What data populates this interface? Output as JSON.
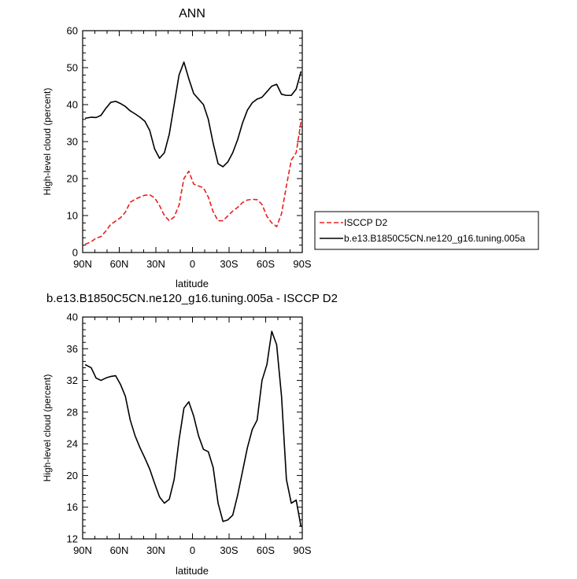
{
  "chart_data": [
    {
      "type": "line",
      "title": "ANN",
      "xlabel": "latitude",
      "ylabel": "High-level cloud (percent)",
      "xlim": [
        90,
        -90
      ],
      "ylim": [
        0,
        60
      ],
      "x_ticks": [
        90,
        60,
        30,
        0,
        -30,
        -60,
        -90
      ],
      "x_tick_labels": [
        "90N",
        "60N",
        "30N",
        "0",
        "30S",
        "60S",
        "90S"
      ],
      "y_ticks": [
        0,
        10,
        20,
        30,
        40,
        50,
        60
      ],
      "y_tick_labels": [
        "0",
        "10",
        "20",
        "30",
        "40",
        "50",
        "60"
      ],
      "grid": false,
      "legend": {
        "placement": "outside-right"
      },
      "series": [
        {
          "name": "ISCCP D2",
          "color": "#e8201e",
          "dash": "dashed",
          "x": [
            88,
            83,
            79,
            75,
            71,
            67,
            63,
            59,
            55,
            51,
            47,
            43,
            39,
            35,
            31,
            27,
            23,
            19,
            15,
            11,
            7,
            3,
            -1,
            -5,
            -9,
            -13,
            -17,
            -21,
            -25,
            -29,
            -33,
            -37,
            -41,
            -45,
            -49,
            -53,
            -57,
            -61,
            -65,
            -69,
            -73,
            -77,
            -81,
            -85,
            -89
          ],
          "values": [
            2.2,
            2.9,
            3.9,
            4.3,
            5.8,
            7.6,
            8.5,
            9.4,
            10.9,
            13.6,
            14.4,
            15.0,
            15.5,
            15.6,
            14.8,
            12.7,
            10.0,
            8.6,
            9.6,
            12.8,
            20.0,
            22.0,
            18.5,
            18.0,
            17.5,
            15.0,
            11.0,
            8.6,
            8.6,
            9.9,
            11.2,
            12.2,
            13.5,
            14.2,
            14.4,
            14.3,
            13.0,
            9.8,
            8.0,
            7.0,
            10.5,
            18.0,
            25.0,
            27.0,
            35.5
          ]
        },
        {
          "name": "b.e13.B1850C5CN.ne120_g16.tuning.005a",
          "color": "#000000",
          "dash": "solid",
          "x": [
            88,
            83,
            79,
            75,
            71,
            67,
            63,
            59,
            55,
            51,
            47,
            43,
            39,
            35,
            31,
            27,
            23,
            19,
            15,
            11,
            7,
            3,
            -1,
            -5,
            -9,
            -13,
            -17,
            -21,
            -25,
            -29,
            -33,
            -37,
            -41,
            -45,
            -49,
            -53,
            -57,
            -61,
            -65,
            -69,
            -73,
            -77,
            -81,
            -85,
            -89
          ],
          "values": [
            36.3,
            36.6,
            36.5,
            37.1,
            39.0,
            40.6,
            40.9,
            40.3,
            39.5,
            38.3,
            37.5,
            36.6,
            35.5,
            33.0,
            28.0,
            25.5,
            27.0,
            32.0,
            40.0,
            48.0,
            51.5,
            47.0,
            43.0,
            41.5,
            40.0,
            36.0,
            29.5,
            24.0,
            23.2,
            24.5,
            27.0,
            30.5,
            35.0,
            38.5,
            40.5,
            41.5,
            42.0,
            43.5,
            45.0,
            45.5,
            42.8,
            42.5,
            42.5,
            44.2,
            49.0
          ]
        }
      ]
    },
    {
      "type": "line",
      "title": "b.e13.B1850C5CN.ne120_g16.tuning.005a - ISCCP D2",
      "xlabel": "latitude",
      "ylabel": "High-level cloud (percent)",
      "xlim": [
        90,
        -90
      ],
      "ylim": [
        12,
        40
      ],
      "x_ticks": [
        90,
        60,
        30,
        0,
        -30,
        -60,
        -90
      ],
      "x_tick_labels": [
        "90N",
        "60N",
        "30N",
        "0",
        "30S",
        "60S",
        "90S"
      ],
      "y_ticks": [
        12,
        16,
        20,
        24,
        28,
        32,
        36,
        40
      ],
      "y_tick_labels": [
        "12",
        "16",
        "20",
        "24",
        "28",
        "32",
        "36",
        "40"
      ],
      "grid": false,
      "series": [
        {
          "color": "#000000",
          "dash": "solid",
          "x": [
            88,
            83,
            79,
            75,
            71,
            67,
            63,
            59,
            55,
            51,
            47,
            43,
            39,
            35,
            31,
            27,
            23,
            19,
            15,
            11,
            7,
            3,
            -1,
            -5,
            -9,
            -13,
            -17,
            -21,
            -25,
            -29,
            -33,
            -37,
            -41,
            -45,
            -49,
            -53,
            -57,
            -61,
            -65,
            -69,
            -73,
            -77,
            -81,
            -85,
            -89
          ],
          "values": [
            34.0,
            33.6,
            32.3,
            32.0,
            32.3,
            32.5,
            32.6,
            31.5,
            30.0,
            27.0,
            25.0,
            23.5,
            22.2,
            20.8,
            19.0,
            17.3,
            16.5,
            17.0,
            19.5,
            24.5,
            28.5,
            29.3,
            27.5,
            25.0,
            23.3,
            23.0,
            21.0,
            16.5,
            14.2,
            14.4,
            15.0,
            17.5,
            20.5,
            23.5,
            25.8,
            27.0,
            32.0,
            34.0,
            38.2,
            36.5,
            30.0,
            19.5,
            16.5,
            16.9,
            13.5
          ]
        }
      ]
    }
  ]
}
